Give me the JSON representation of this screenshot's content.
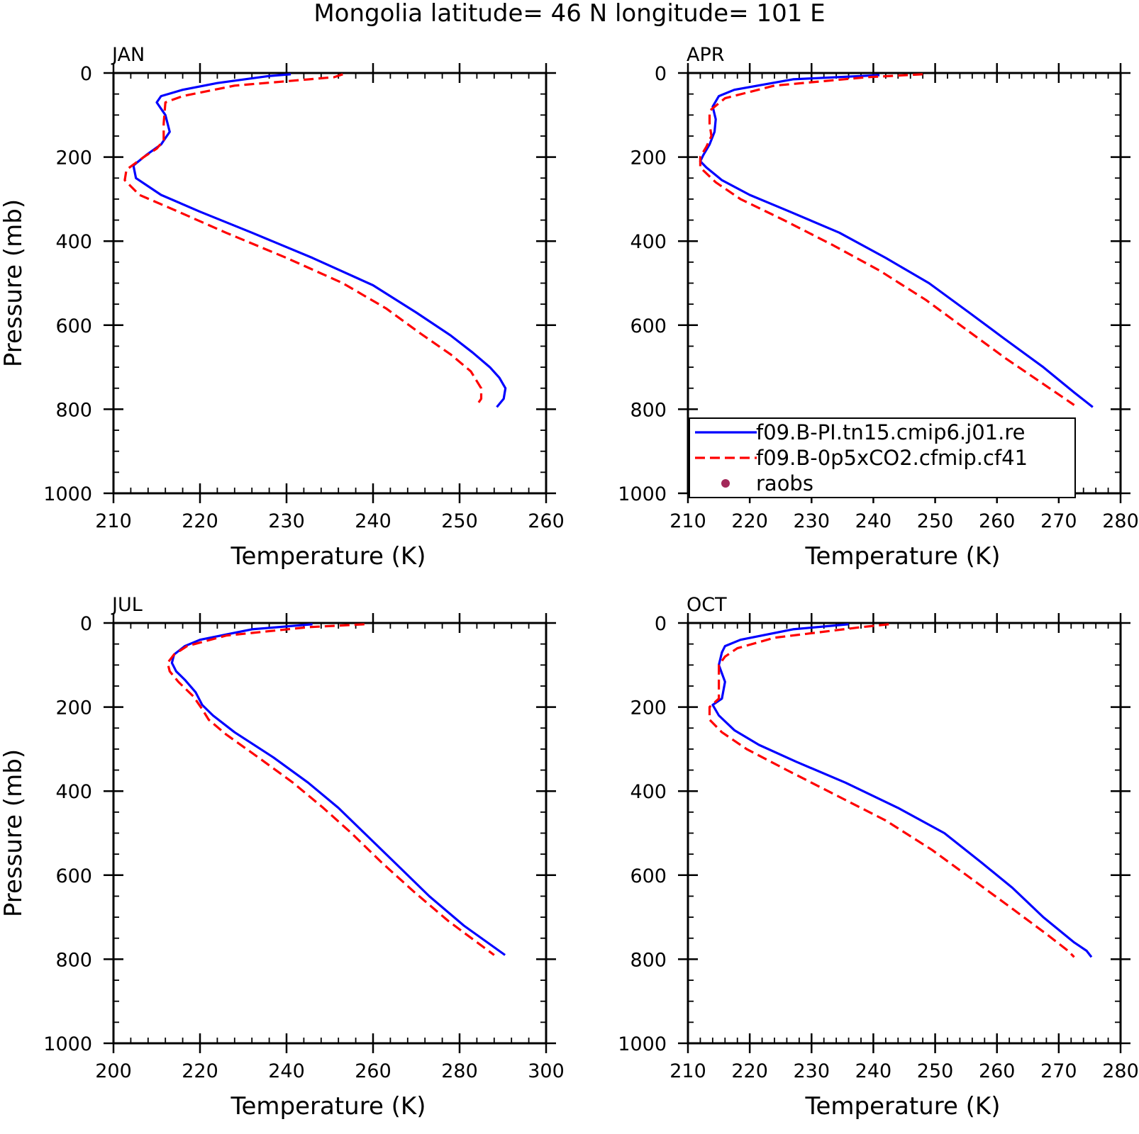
{
  "title": "Mongolia  latitude= 46 N longitude= 101 E",
  "colors": {
    "model1": "#0000ff",
    "model2": "#ff0000",
    "raobs": "#a3285a"
  },
  "chart_data": [
    {
      "type": "line",
      "panel_title": "JAN",
      "xlabel": "Temperature (K)",
      "ylabel": "Pressure (mb)",
      "xlim": [
        210,
        260
      ],
      "xticks": [
        "210",
        "220",
        "230",
        "240",
        "250",
        "260"
      ],
      "ylim": [
        0,
        1000
      ],
      "yticks": [
        "0",
        "200",
        "400",
        "600",
        "800",
        "1000"
      ],
      "y_inverted": true,
      "series": [
        {
          "y": [
            3,
            7,
            24,
            40,
            55,
            70,
            100,
            140,
            170,
            195,
            220,
            250,
            290,
            330,
            380,
            440,
            505,
            570,
            625,
            665,
            700,
            725,
            750,
            775,
            795
          ],
          "x": [
            230.5,
            228.0,
            222.0,
            218.0,
            215.5,
            215.0,
            216.0,
            216.5,
            215.5,
            213.8,
            212.3,
            212.6,
            215.5,
            220.0,
            226.0,
            233.0,
            240.0,
            245.0,
            249.0,
            251.5,
            253.5,
            254.6,
            255.3,
            255.1,
            254.3
          ]
        },
        {
          "y": [
            3,
            10,
            30,
            55,
            70,
            120,
            160,
            180,
            200,
            230,
            255,
            290,
            330,
            380,
            440,
            500,
            560,
            620,
            670,
            710,
            750,
            775,
            790
          ],
          "x": [
            236.5,
            235.5,
            224.0,
            218.0,
            216.0,
            215.8,
            215.8,
            215.0,
            213.5,
            211.5,
            211.3,
            213.0,
            217.5,
            223.0,
            230.0,
            236.5,
            241.5,
            245.5,
            249.0,
            251.3,
            252.5,
            252.5,
            252.0
          ]
        }
      ]
    },
    {
      "type": "line",
      "panel_title": "APR",
      "xlabel": "Temperature (K)",
      "ylabel": "",
      "xlim": [
        210,
        280
      ],
      "xticks": [
        "210",
        "220",
        "230",
        "240",
        "250",
        "260",
        "270",
        "280"
      ],
      "ylim": [
        0,
        1000
      ],
      "yticks": [
        "0",
        "200",
        "400",
        "600",
        "800",
        "1000"
      ],
      "y_inverted": true,
      "legend": {
        "placement": "bottom-left",
        "entries": [
          "f09.B-PI.tn15.cmip6.j01.re",
          "f09.B-0p5xCO2.cfmip.cf41",
          "raobs"
        ]
      },
      "series": [
        {
          "y": [
            5,
            15,
            40,
            55,
            80,
            110,
            140,
            170,
            195,
            210,
            225,
            255,
            290,
            330,
            380,
            440,
            500,
            570,
            630,
            700,
            760,
            795
          ],
          "x": [
            241.0,
            227.0,
            217.5,
            215.0,
            214.0,
            214.5,
            214.3,
            213.5,
            212.5,
            212.0,
            213.0,
            215.5,
            220.0,
            226.5,
            234.5,
            242.0,
            249.0,
            255.5,
            261.0,
            267.5,
            272.5,
            275.5
          ]
        },
        {
          "y": [
            3,
            10,
            30,
            60,
            90,
            120,
            150,
            175,
            200,
            225,
            260,
            300,
            350,
            410,
            470,
            540,
            610,
            680,
            740,
            790
          ],
          "x": [
            248.0,
            239.0,
            224.0,
            216.0,
            213.5,
            213.5,
            213.8,
            213.0,
            212.0,
            212.0,
            214.5,
            218.5,
            225.5,
            233.5,
            241.0,
            248.5,
            255.0,
            261.5,
            267.5,
            272.5
          ]
        }
      ]
    },
    {
      "type": "line",
      "panel_title": "JUL",
      "xlabel": "Temperature (K)",
      "ylabel": "Pressure (mb)",
      "xlim": [
        200,
        300
      ],
      "xticks": [
        "200",
        "220",
        "240",
        "260",
        "280",
        "300"
      ],
      "ylim": [
        0,
        1000
      ],
      "yticks": [
        "0",
        "200",
        "400",
        "600",
        "800",
        "1000"
      ],
      "y_inverted": true,
      "series": [
        {
          "y": [
            3,
            15,
            40,
            55,
            75,
            95,
            115,
            135,
            165,
            195,
            220,
            260,
            320,
            380,
            440,
            510,
            580,
            650,
            720,
            790
          ],
          "x": [
            246.0,
            232.0,
            220.0,
            216.5,
            214.0,
            213.5,
            214.5,
            216.5,
            219.0,
            220.5,
            223.0,
            228.0,
            237.0,
            245.0,
            252.0,
            259.0,
            266.0,
            273.0,
            281.0,
            290.5
          ]
        },
        {
          "y": [
            3,
            10,
            30,
            55,
            75,
            95,
            115,
            140,
            175,
            205,
            230,
            265,
            320,
            380,
            440,
            500,
            570,
            640,
            710,
            790
          ],
          "x": [
            258.0,
            245.0,
            226.0,
            217.0,
            214.0,
            212.5,
            213.0,
            215.0,
            218.5,
            220.5,
            222.0,
            226.0,
            233.5,
            241.5,
            248.5,
            255.0,
            262.0,
            269.5,
            277.5,
            288.0
          ]
        }
      ]
    },
    {
      "type": "line",
      "panel_title": "OCT",
      "xlabel": "Temperature (K)",
      "ylabel": "",
      "xlim": [
        210,
        280
      ],
      "xticks": [
        "210",
        "220",
        "230",
        "240",
        "250",
        "260",
        "270",
        "280"
      ],
      "ylim": [
        0,
        1000
      ],
      "yticks": [
        "0",
        "200",
        "400",
        "600",
        "800",
        "1000"
      ],
      "y_inverted": true,
      "series": [
        {
          "y": [
            3,
            15,
            40,
            55,
            70,
            100,
            140,
            180,
            195,
            220,
            255,
            290,
            330,
            380,
            440,
            500,
            570,
            630,
            700,
            760,
            780,
            795
          ],
          "x": [
            236.0,
            227.0,
            218.5,
            216.0,
            215.5,
            215.0,
            216.0,
            215.5,
            214.0,
            215.0,
            217.5,
            221.5,
            227.5,
            235.5,
            244.0,
            251.5,
            257.5,
            262.5,
            267.5,
            272.5,
            274.5,
            275.3
          ]
        },
        {
          "y": [
            3,
            10,
            35,
            60,
            80,
            100,
            140,
            180,
            200,
            230,
            260,
            300,
            350,
            410,
            470,
            540,
            610,
            680,
            740,
            780,
            795
          ],
          "x": [
            242.5,
            238.0,
            224.0,
            218.0,
            216.0,
            215.0,
            215.0,
            215.0,
            213.5,
            213.5,
            215.5,
            219.5,
            226.0,
            234.0,
            242.0,
            249.5,
            256.0,
            262.5,
            268.0,
            271.5,
            272.5
          ]
        }
      ]
    }
  ]
}
